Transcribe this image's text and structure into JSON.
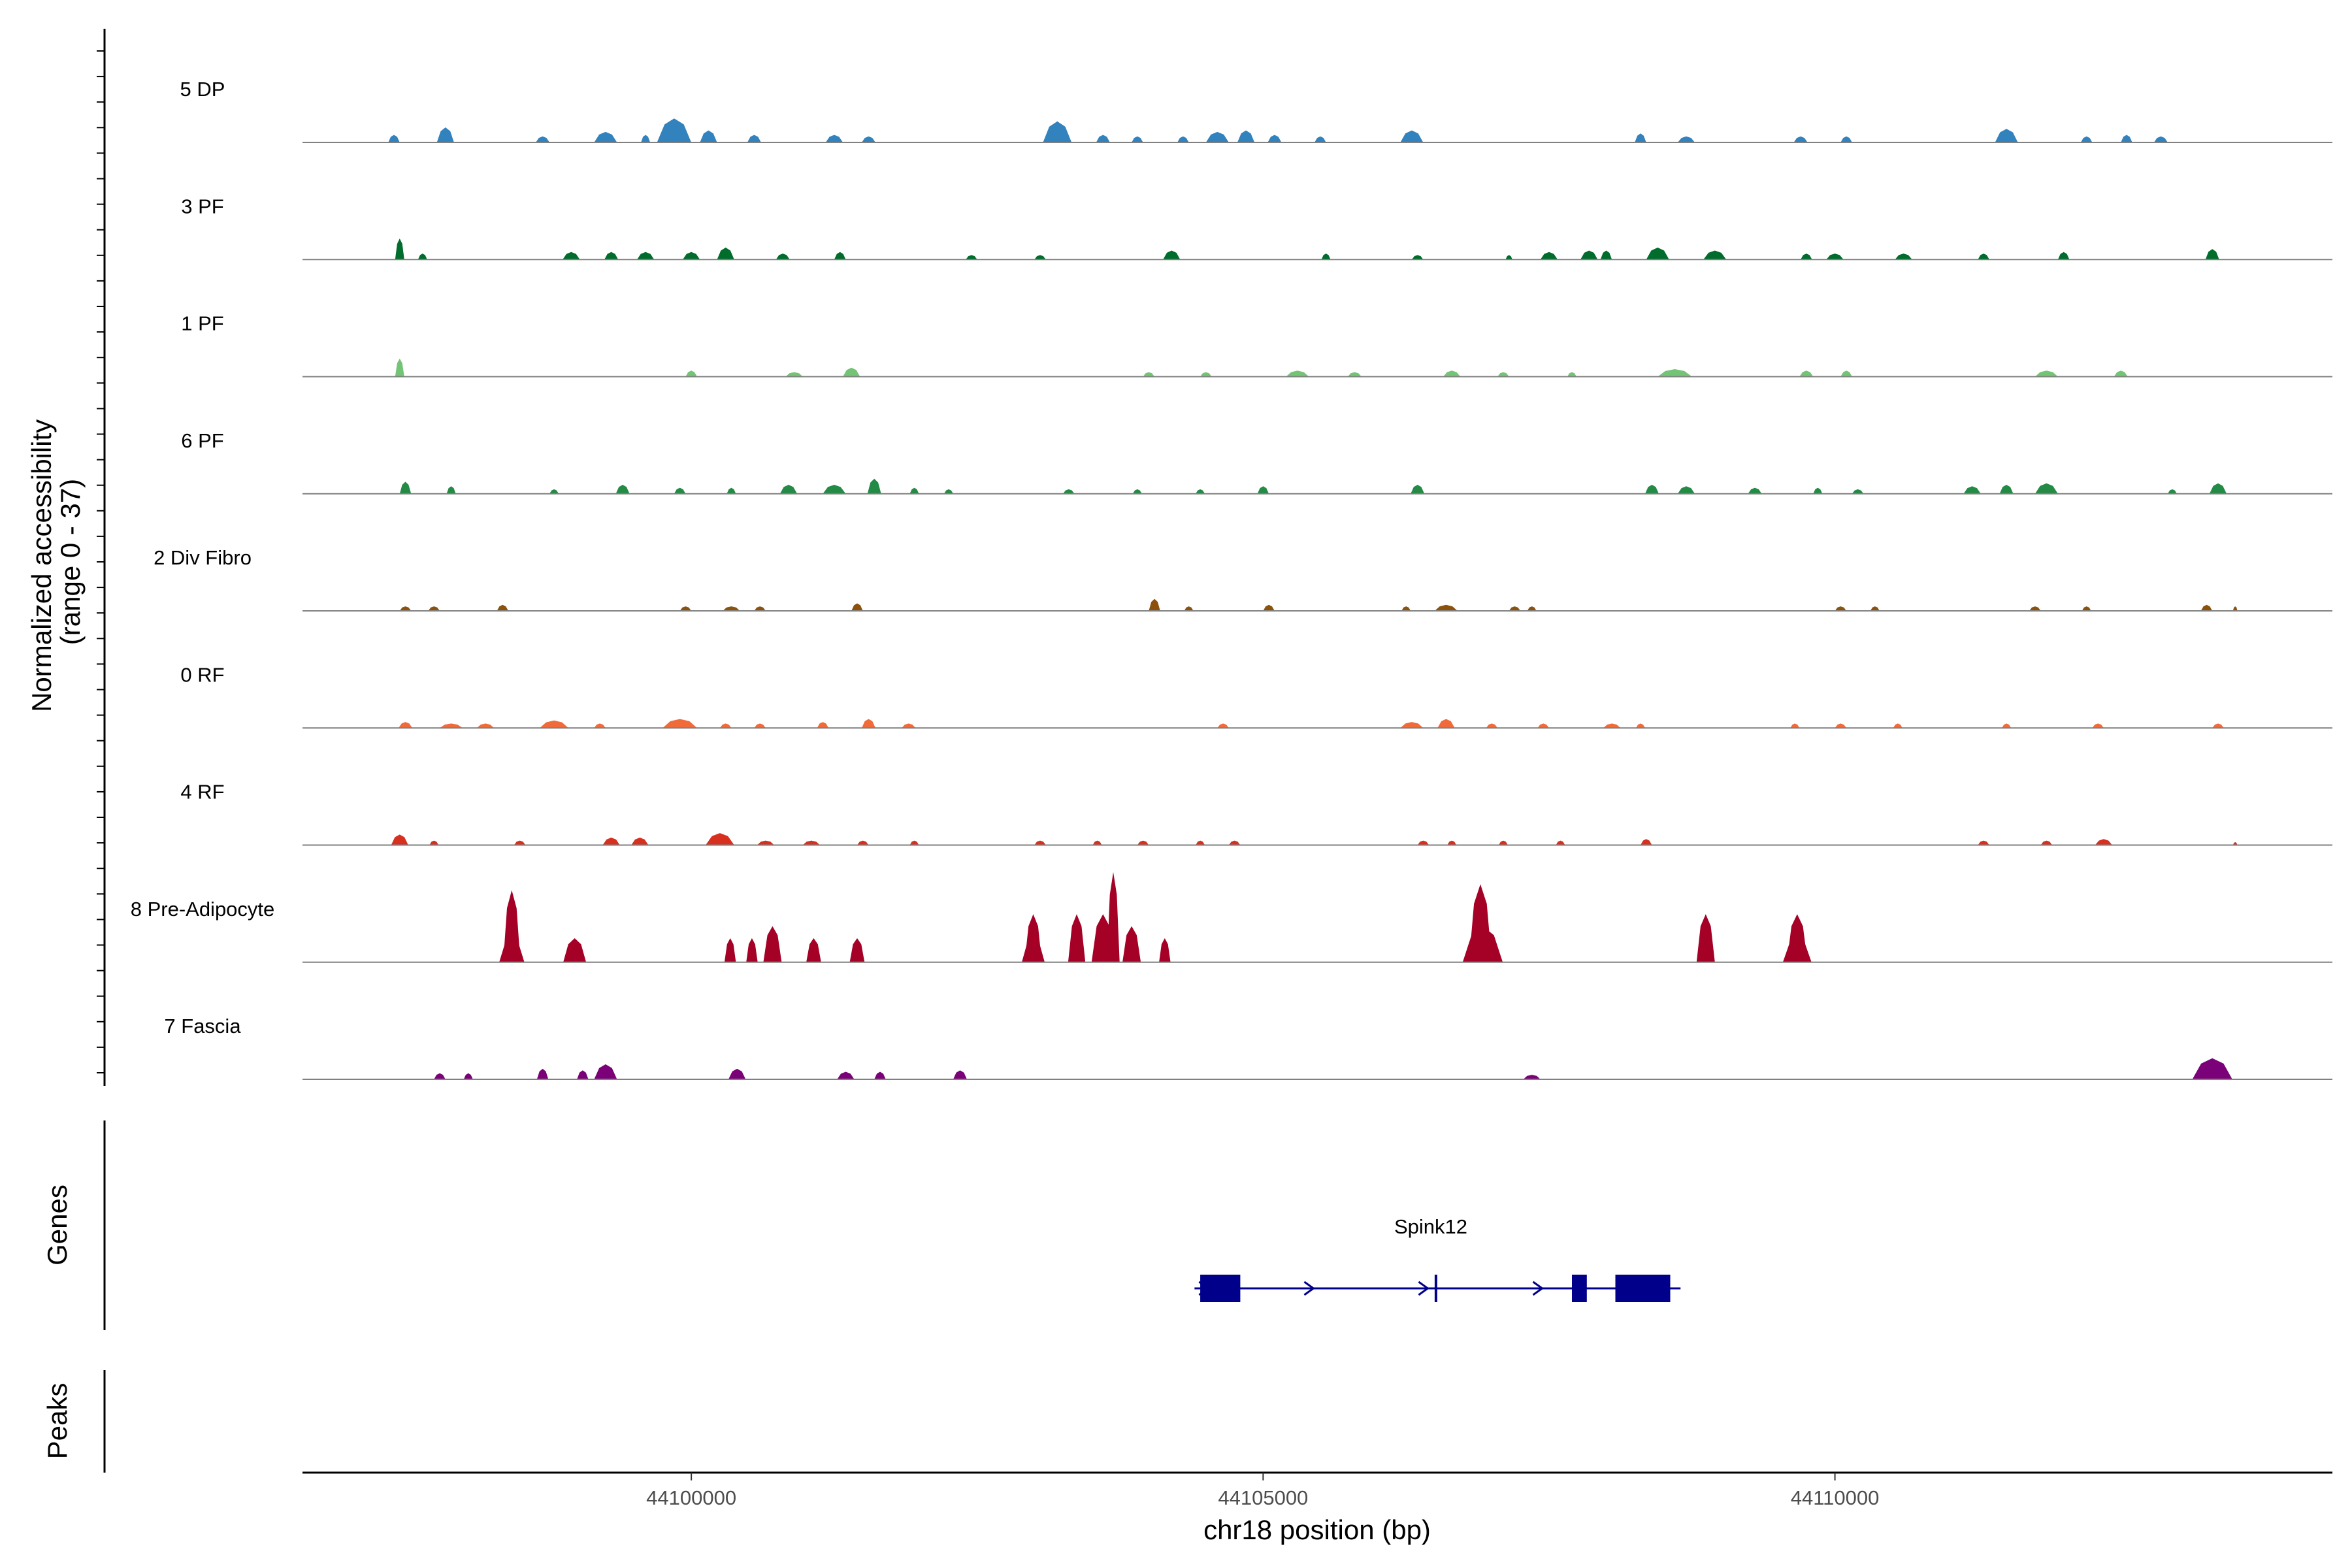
{
  "chart_data": {
    "type": "area",
    "title": "",
    "ylabel_line1": "Normalized accessibility",
    "ylabel_line2": "(range 0 - 37)",
    "ylim": [
      0,
      37
    ],
    "xlabel": "chr18 position (bp)",
    "xlim": [
      44096600,
      44114350
    ],
    "x_ticks": [
      {
        "value": 44100000,
        "label": "44100000"
      },
      {
        "value": 44105000,
        "label": "44105000"
      },
      {
        "value": 44110000,
        "label": "44110000"
      }
    ],
    "tracks": [
      {
        "name": "5 DP",
        "color": "#3182bd",
        "peaks": [
          [
            44097400,
            100,
            2.5
          ],
          [
            44097850,
            150,
            5
          ],
          [
            44098700,
            120,
            2
          ],
          [
            44099250,
            200,
            3.5
          ],
          [
            44099600,
            80,
            2.5
          ],
          [
            44099850,
            300,
            8
          ],
          [
            44100150,
            150,
            4
          ],
          [
            44100550,
            120,
            2.5
          ],
          [
            44101250,
            150,
            2.5
          ],
          [
            44101550,
            120,
            2
          ],
          [
            44103200,
            250,
            7
          ],
          [
            44103600,
            120,
            2.5
          ],
          [
            44103900,
            100,
            2
          ],
          [
            44104300,
            100,
            2
          ],
          [
            44104600,
            200,
            3.5
          ],
          [
            44104850,
            150,
            4
          ],
          [
            44105100,
            120,
            2.5
          ],
          [
            44105500,
            100,
            2
          ],
          [
            44106300,
            200,
            4
          ],
          [
            44108300,
            100,
            3
          ],
          [
            44108700,
            150,
            2
          ],
          [
            44109700,
            120,
            2
          ],
          [
            44110100,
            100,
            2
          ],
          [
            44111500,
            200,
            4.5
          ],
          [
            44112200,
            100,
            2
          ],
          [
            44112550,
            100,
            2.5
          ],
          [
            44112850,
            120,
            2
          ]
        ]
      },
      {
        "name": "3 PF",
        "color": "#006d2c",
        "peaks": [
          [
            44097450,
            80,
            7
          ],
          [
            44097650,
            80,
            2
          ],
          [
            44098950,
            150,
            2.5
          ],
          [
            44099300,
            120,
            2.5
          ],
          [
            44099600,
            150,
            2.5
          ],
          [
            44100000,
            150,
            2.5
          ],
          [
            44100300,
            150,
            4
          ],
          [
            44100800,
            120,
            2
          ],
          [
            44101300,
            100,
            2.5
          ],
          [
            44102450,
            100,
            1.5
          ],
          [
            44103050,
            100,
            1.5
          ],
          [
            44104200,
            150,
            3
          ],
          [
            44105550,
            80,
            2
          ],
          [
            44106350,
            100,
            1.5
          ],
          [
            44107150,
            60,
            1.5
          ],
          [
            44107500,
            150,
            2.5
          ],
          [
            44107850,
            150,
            3
          ],
          [
            44108000,
            100,
            3
          ],
          [
            44108450,
            200,
            4
          ],
          [
            44108950,
            200,
            3
          ],
          [
            44109750,
            100,
            2
          ],
          [
            44110000,
            150,
            2
          ],
          [
            44110600,
            150,
            2
          ],
          [
            44111300,
            100,
            2
          ],
          [
            44112000,
            100,
            2.5
          ],
          [
            44113300,
            120,
            3.5
          ]
        ]
      },
      {
        "name": "1 PF",
        "color": "#74c476",
        "peaks": [
          [
            44097450,
            80,
            6
          ],
          [
            44100000,
            100,
            2
          ],
          [
            44100900,
            150,
            1.5
          ],
          [
            44101400,
            150,
            3
          ],
          [
            44104000,
            100,
            1.5
          ],
          [
            44104500,
            100,
            1.5
          ],
          [
            44105300,
            200,
            2
          ],
          [
            44105800,
            120,
            1.5
          ],
          [
            44106650,
            150,
            2
          ],
          [
            44107100,
            100,
            1.5
          ],
          [
            44107700,
            80,
            1.5
          ],
          [
            44108600,
            300,
            2.5
          ],
          [
            44109750,
            120,
            2
          ],
          [
            44110100,
            100,
            2
          ],
          [
            44111850,
            200,
            2
          ],
          [
            44112500,
            120,
            2
          ]
        ]
      },
      {
        "name": "6 PF",
        "color": "#238b45",
        "peaks": [
          [
            44097500,
            100,
            4
          ],
          [
            44097900,
            80,
            2.5
          ],
          [
            44098800,
            80,
            1.5
          ],
          [
            44099400,
            120,
            3
          ],
          [
            44099900,
            100,
            2
          ],
          [
            44100350,
            80,
            2
          ],
          [
            44100850,
            150,
            3
          ],
          [
            44101250,
            200,
            3
          ],
          [
            44101600,
            120,
            5
          ],
          [
            44101950,
            80,
            2
          ],
          [
            44102250,
            80,
            1.5
          ],
          [
            44103300,
            100,
            1.5
          ],
          [
            44103900,
            80,
            1.5
          ],
          [
            44104450,
            80,
            1.5
          ],
          [
            44105000,
            100,
            2.5
          ],
          [
            44106350,
            120,
            3
          ],
          [
            44108400,
            120,
            3
          ],
          [
            44108700,
            150,
            2.5
          ],
          [
            44109300,
            120,
            2
          ],
          [
            44109850,
            80,
            2
          ],
          [
            44110200,
            100,
            1.5
          ],
          [
            44111200,
            150,
            2.5
          ],
          [
            44111500,
            120,
            3
          ],
          [
            44111850,
            200,
            3.5
          ],
          [
            44112950,
            80,
            1.5
          ],
          [
            44113350,
            150,
            3.5
          ]
        ]
      },
      {
        "name": "2 Div Fibro",
        "color": "#8c510a",
        "peaks": [
          [
            44097500,
            100,
            1.5
          ],
          [
            44097750,
            100,
            1.5
          ],
          [
            44098350,
            100,
            2
          ],
          [
            44099950,
            100,
            1.5
          ],
          [
            44100350,
            150,
            1.5
          ],
          [
            44100600,
            100,
            1.5
          ],
          [
            44101450,
            100,
            2.5
          ],
          [
            44104050,
            100,
            4
          ],
          [
            44104350,
            80,
            1.5
          ],
          [
            44105050,
            100,
            2
          ],
          [
            44106250,
            80,
            1.5
          ],
          [
            44106600,
            200,
            2
          ],
          [
            44107200,
            100,
            1.5
          ],
          [
            44107350,
            80,
            1.5
          ],
          [
            44110050,
            100,
            1.5
          ],
          [
            44110350,
            80,
            1.5
          ],
          [
            44111750,
            100,
            1.5
          ],
          [
            44112200,
            80,
            1.5
          ],
          [
            44113250,
            100,
            2
          ],
          [
            44113500,
            40,
            1.5
          ]
        ]
      },
      {
        "name": "0 RF",
        "color": "#f16a3a",
        "peaks": [
          [
            44097500,
            120,
            2
          ],
          [
            44097900,
            200,
            1.5
          ],
          [
            44098200,
            150,
            1.5
          ],
          [
            44098800,
            250,
            2.5
          ],
          [
            44099200,
            100,
            1.5
          ],
          [
            44099900,
            300,
            3
          ],
          [
            44100300,
            100,
            1.5
          ],
          [
            44100600,
            100,
            1.5
          ],
          [
            44101150,
            100,
            2
          ],
          [
            44101550,
            120,
            3
          ],
          [
            44101900,
            120,
            1.5
          ],
          [
            44104650,
            100,
            1.5
          ],
          [
            44106300,
            200,
            2
          ],
          [
            44106600,
            150,
            3
          ],
          [
            44107000,
            100,
            1.5
          ],
          [
            44107450,
            100,
            1.5
          ],
          [
            44108050,
            150,
            1.5
          ],
          [
            44108300,
            80,
            1.5
          ],
          [
            44109650,
            80,
            1.5
          ],
          [
            44110050,
            100,
            1.5
          ],
          [
            44110550,
            80,
            1.5
          ],
          [
            44111500,
            80,
            1.5
          ],
          [
            44112300,
            100,
            1.5
          ],
          [
            44113350,
            100,
            1.5
          ]
        ]
      },
      {
        "name": "4 RF",
        "color": "#d7301f",
        "peaks": [
          [
            44097450,
            150,
            3.5
          ],
          [
            44097750,
            80,
            1.5
          ],
          [
            44098500,
            100,
            1.5
          ],
          [
            44099300,
            150,
            2.5
          ],
          [
            44099550,
            150,
            2.5
          ],
          [
            44100250,
            250,
            4
          ],
          [
            44100650,
            150,
            1.5
          ],
          [
            44101050,
            150,
            1.5
          ],
          [
            44101500,
            100,
            1.5
          ],
          [
            44101950,
            80,
            1.5
          ],
          [
            44103050,
            100,
            1.5
          ],
          [
            44103550,
            80,
            1.5
          ],
          [
            44103950,
            100,
            1.5
          ],
          [
            44104450,
            80,
            1.5
          ],
          [
            44104750,
            100,
            1.5
          ],
          [
            44106400,
            100,
            1.5
          ],
          [
            44106650,
            80,
            1.5
          ],
          [
            44107100,
            80,
            1.5
          ],
          [
            44107600,
            80,
            1.5
          ],
          [
            44108350,
            100,
            2
          ],
          [
            44111300,
            100,
            1.5
          ],
          [
            44111850,
            100,
            1.5
          ],
          [
            44112350,
            150,
            2
          ],
          [
            44113500,
            40,
            1
          ]
        ]
      },
      {
        "name": "8 Pre-Adipocyte",
        "color": "#a50026",
        "peaks": [
          [
            44098430,
            150,
            24
          ],
          [
            44098430,
            220,
            8
          ],
          [
            44098980,
            200,
            8
          ],
          [
            44100340,
            100,
            8
          ],
          [
            44100530,
            100,
            8
          ],
          [
            44100710,
            160,
            12
          ],
          [
            44101070,
            130,
            8
          ],
          [
            44101450,
            130,
            8
          ],
          [
            44102990,
            150,
            16
          ],
          [
            44102990,
            200,
            8
          ],
          [
            44103370,
            150,
            16
          ],
          [
            44103690,
            110,
            30
          ],
          [
            44103600,
            200,
            16
          ],
          [
            44103850,
            160,
            12
          ],
          [
            44104140,
            100,
            8
          ],
          [
            44106900,
            200,
            26
          ],
          [
            44106920,
            350,
            12
          ],
          [
            44108870,
            160,
            16
          ],
          [
            44109670,
            180,
            16
          ],
          [
            44109670,
            250,
            8
          ]
        ]
      },
      {
        "name": "7 Fascia",
        "color": "#7a0177",
        "peaks": [
          [
            44097800,
            100,
            2
          ],
          [
            44098050,
            80,
            2
          ],
          [
            44098700,
            100,
            3.5
          ],
          [
            44099050,
            100,
            3
          ],
          [
            44099250,
            200,
            5
          ],
          [
            44100400,
            150,
            3.5
          ],
          [
            44101350,
            150,
            2.5
          ],
          [
            44101650,
            100,
            2.5
          ],
          [
            44102350,
            120,
            3
          ],
          [
            44107350,
            150,
            1.5
          ],
          [
            44113300,
            350,
            7
          ]
        ]
      }
    ],
    "genes": [
      {
        "name": "Spink12",
        "start": 44104400,
        "end": 44108650,
        "strand": "+",
        "color": "#00008b",
        "exons": [
          [
            44104450,
            44104800
          ],
          [
            44106500,
            44106520
          ],
          [
            44107700,
            44107830
          ],
          [
            44108080,
            44108560
          ]
        ]
      }
    ],
    "panel_labels": {
      "genes": "Genes",
      "peaks": "Peaks"
    }
  }
}
